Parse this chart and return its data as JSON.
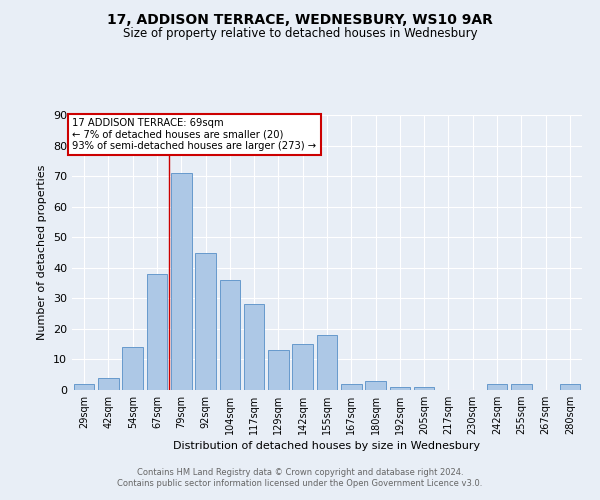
{
  "title1": "17, ADDISON TERRACE, WEDNESBURY, WS10 9AR",
  "title2": "Size of property relative to detached houses in Wednesbury",
  "xlabel": "Distribution of detached houses by size in Wednesbury",
  "ylabel": "Number of detached properties",
  "footer1": "Contains HM Land Registry data © Crown copyright and database right 2024.",
  "footer2": "Contains public sector information licensed under the Open Government Licence v3.0.",
  "annotation_line1": "17 ADDISON TERRACE: 69sqm",
  "annotation_line2": "← 7% of detached houses are smaller (20)",
  "annotation_line3": "93% of semi-detached houses are larger (273) →",
  "property_size": 69,
  "bar_categories": [
    "29sqm",
    "42sqm",
    "54sqm",
    "67sqm",
    "79sqm",
    "92sqm",
    "104sqm",
    "117sqm",
    "129sqm",
    "142sqm",
    "155sqm",
    "167sqm",
    "180sqm",
    "192sqm",
    "205sqm",
    "217sqm",
    "230sqm",
    "242sqm",
    "255sqm",
    "267sqm",
    "280sqm"
  ],
  "bar_values": [
    2,
    4,
    14,
    38,
    71,
    45,
    36,
    28,
    13,
    15,
    18,
    2,
    3,
    1,
    1,
    0,
    0,
    2,
    2,
    0,
    2
  ],
  "bar_color": "#adc8e6",
  "bar_edge_color": "#6699cc",
  "vline_color": "#cc0000",
  "vline_x": 3.5,
  "annotation_box_color": "#cc0000",
  "background_color": "#e8eef6",
  "grid_color": "#ffffff",
  "ylim": [
    0,
    90
  ],
  "yticks": [
    0,
    10,
    20,
    30,
    40,
    50,
    60,
    70,
    80,
    90
  ]
}
